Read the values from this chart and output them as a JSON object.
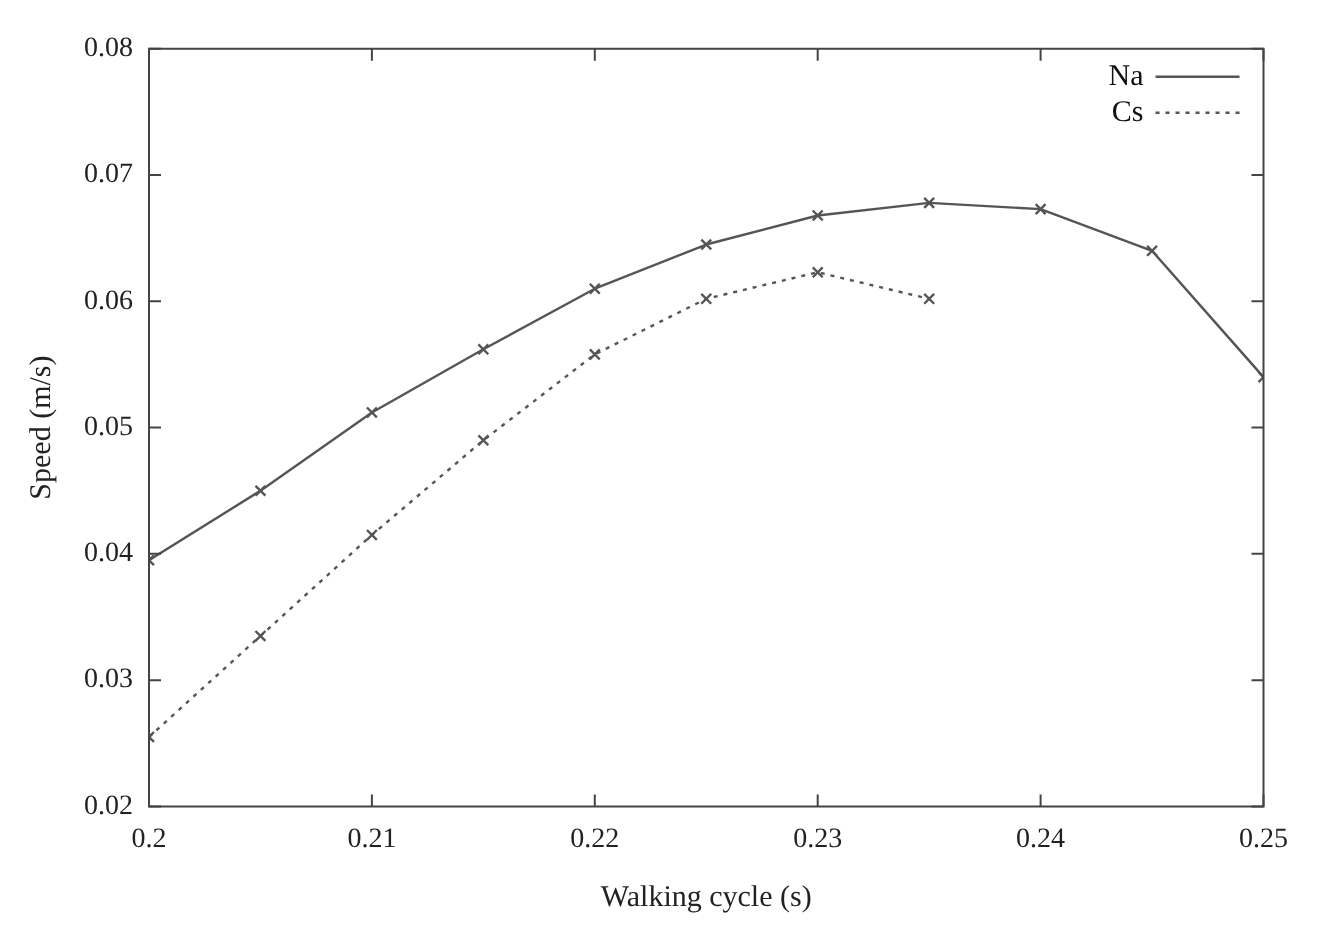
{
  "chart_data": {
    "type": "line",
    "xlabel": "Walking cycle (s)",
    "ylabel": "Speed (m/s)",
    "xlim": [
      0.2,
      0.25
    ],
    "xticks": [
      0.2,
      0.21,
      0.22,
      0.23,
      0.24,
      0.25
    ],
    "ylim": [
      0.02,
      0.08
    ],
    "yticks": [
      0.02,
      0.03,
      0.04,
      0.05,
      0.06,
      0.07,
      0.08
    ],
    "grid": false,
    "legend": "top right",
    "marker": "cross",
    "series": [
      {
        "name": "Na",
        "color": "#555555",
        "line_style": "solid",
        "x": [
          0.2,
          0.205,
          0.21,
          0.215,
          0.22,
          0.225,
          0.23,
          0.235,
          0.24,
          0.245,
          0.25
        ],
        "values": [
          0.0395,
          0.045,
          0.0512,
          0.0562,
          0.061,
          0.0645,
          0.0668,
          0.0678,
          0.0673,
          0.064,
          0.054
        ]
      },
      {
        "name": "Cs",
        "color": "#555555",
        "line_style": "dotted",
        "x": [
          0.2,
          0.205,
          0.21,
          0.215,
          0.22,
          0.225,
          0.23,
          0.235
        ],
        "values": [
          0.0255,
          0.0335,
          0.0415,
          0.049,
          0.0558,
          0.0602,
          0.0623,
          0.0602
        ]
      }
    ]
  }
}
